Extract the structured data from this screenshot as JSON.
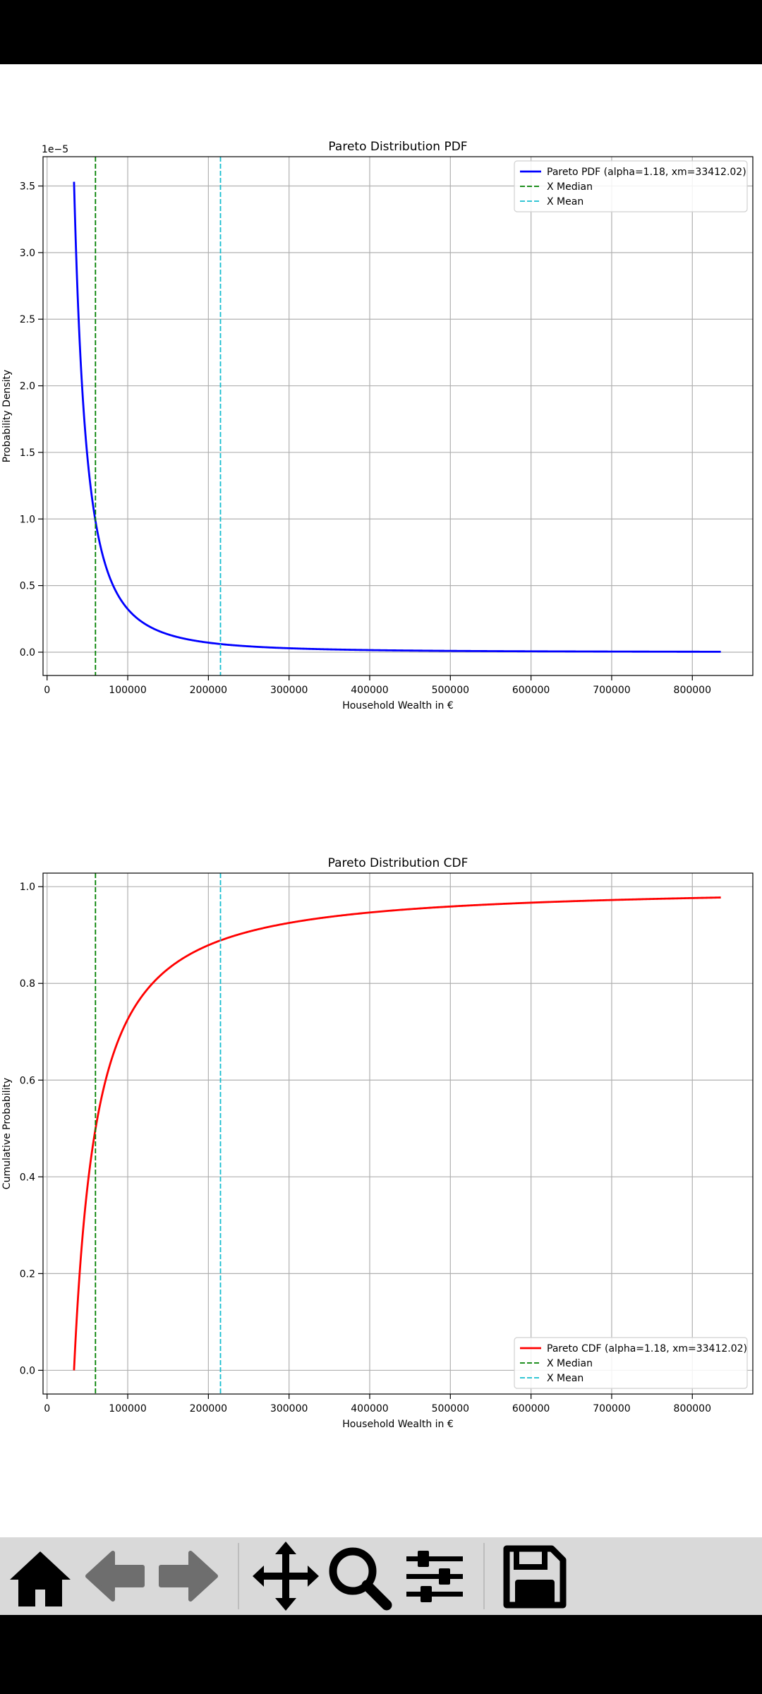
{
  "chart_data": [
    {
      "type": "line",
      "title": "Pareto Distribution PDF",
      "xlabel": "Household Wealth in €",
      "ylabel": "Probability Density",
      "y_offset_label": "1e−5",
      "xlim": [
        -5000,
        875000
      ],
      "ylim": [
        -1.75e-06,
        3.72e-05
      ],
      "xticks": [
        0,
        100000,
        200000,
        300000,
        400000,
        500000,
        600000,
        700000,
        800000
      ],
      "xtick_labels": [
        "0",
        "100000",
        "200000",
        "300000",
        "400000",
        "500000",
        "600000",
        "700000",
        "800000"
      ],
      "yticks": [
        0,
        5e-06,
        1e-05,
        1.5e-05,
        2e-05,
        2.5e-05,
        3e-05,
        3.5e-05
      ],
      "ytick_labels": [
        "0.0",
        "0.5",
        "1.0",
        "1.5",
        "2.0",
        "2.5",
        "3.0",
        "3.5"
      ],
      "grid": true,
      "legend_position": "top-right",
      "series": [
        {
          "name": "Pareto PDF (alpha=1.18, xm=33412.02)",
          "color": "#0000ff",
          "kind": "pdf",
          "alpha": 1.18,
          "xm": 33412.02,
          "x_start": 33412.02,
          "x_end": 835300
        }
      ],
      "vlines": [
        {
          "name": "X Median",
          "x": 60000,
          "color": "#008000"
        },
        {
          "name": "X Mean",
          "x": 215000,
          "color": "#17becf"
        }
      ]
    },
    {
      "type": "line",
      "title": "Pareto Distribution CDF",
      "xlabel": "Household Wealth in €",
      "ylabel": "Cumulative Probability",
      "y_offset_label": "",
      "xlim": [
        -5000,
        875000
      ],
      "ylim": [
        -0.049,
        1.028
      ],
      "xticks": [
        0,
        100000,
        200000,
        300000,
        400000,
        500000,
        600000,
        700000,
        800000
      ],
      "xtick_labels": [
        "0",
        "100000",
        "200000",
        "300000",
        "400000",
        "500000",
        "600000",
        "700000",
        "800000"
      ],
      "yticks": [
        0,
        0.2,
        0.4,
        0.6,
        0.8,
        1.0
      ],
      "ytick_labels": [
        "0.0",
        "0.2",
        "0.4",
        "0.6",
        "0.8",
        "1.0"
      ],
      "grid": true,
      "legend_position": "bottom-right",
      "series": [
        {
          "name": "Pareto CDF (alpha=1.18, xm=33412.02)",
          "color": "#ff0000",
          "kind": "cdf",
          "alpha": 1.18,
          "xm": 33412.02,
          "x_start": 33412.02,
          "x_end": 835300
        }
      ],
      "vlines": [
        {
          "name": "X Median",
          "x": 60000,
          "color": "#008000"
        },
        {
          "name": "X Mean",
          "x": 215000,
          "color": "#17becf"
        }
      ]
    }
  ],
  "toolbar": {
    "buttons": [
      {
        "icon": "home-icon",
        "enabled": true
      },
      {
        "icon": "back-arrow-icon",
        "enabled": false
      },
      {
        "icon": "forward-arrow-icon",
        "enabled": false
      },
      {
        "icon": "pan-icon",
        "enabled": true
      },
      {
        "icon": "zoom-icon",
        "enabled": true
      },
      {
        "icon": "configure-subplots-icon",
        "enabled": true
      },
      {
        "icon": "save-icon",
        "enabled": true
      }
    ]
  }
}
